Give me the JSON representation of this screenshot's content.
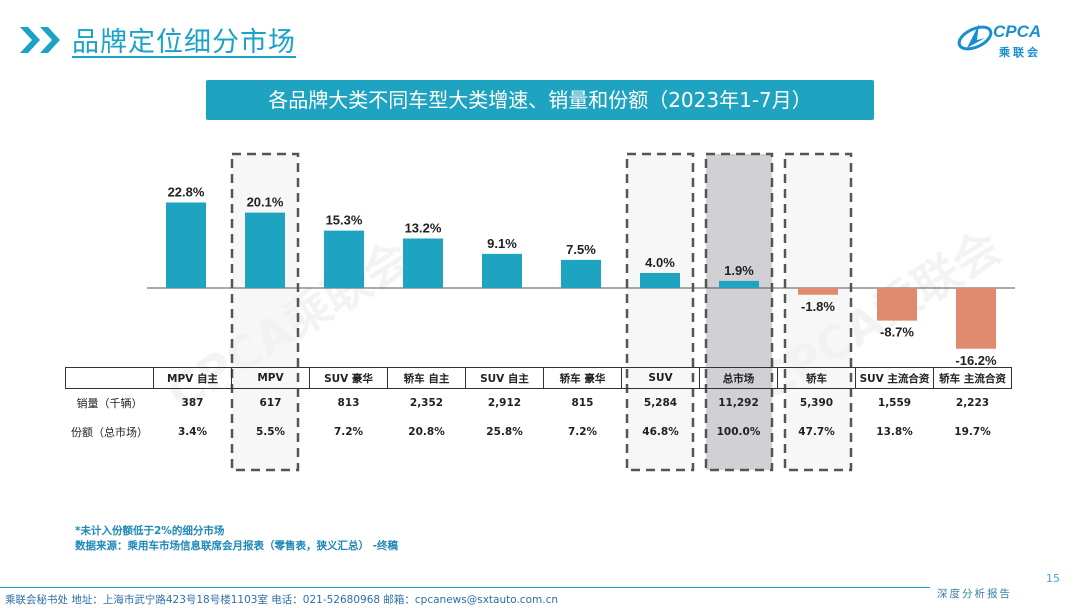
{
  "header": {
    "page_title": "品牌定位细分市场",
    "logo_text": "CPCA",
    "logo_cn": "乘联会"
  },
  "subtitle": "各品牌大类不同车型大类增速、销量和份额（2023年1-7月）",
  "watermark_text": "CPCA乘联会",
  "colors": {
    "positive": "#1ea3c0",
    "negative": "#e08a6e",
    "highlight_gray": "#c9c9ce",
    "accent": "#1aa3c6"
  },
  "chart_data": {
    "type": "bar",
    "title": "各品牌大类不同车型大类增速、销量和份额（2023年1-7月）",
    "categories": [
      "MPV 自主",
      "MPV",
      "SUV 豪华",
      "轿车 自主",
      "SUV 自主",
      "轿车 豪华",
      "SUV",
      "总市场",
      "轿车",
      "SUV 主流合资",
      "轿车 主流合资"
    ],
    "values": [
      22.8,
      20.1,
      15.3,
      13.2,
      9.1,
      7.5,
      4.0,
      1.9,
      -1.8,
      -8.7,
      -16.2
    ],
    "value_labels": [
      "22.8%",
      "20.1%",
      "15.3%",
      "13.2%",
      "9.1%",
      "7.5%",
      "4.0%",
      "1.9%",
      "-1.8%",
      "-8.7%",
      "-16.2%"
    ],
    "unit": "%",
    "ylim": [
      -20,
      25
    ],
    "highlighted": [
      "MPV",
      "SUV",
      "总市场",
      "轿车"
    ],
    "shaded": [
      "总市场"
    ]
  },
  "table": {
    "rows": [
      {
        "label": "销量（千辆）",
        "values": [
          "387",
          "617",
          "813",
          "2,352",
          "2,912",
          "815",
          "5,284",
          "11,292",
          "5,390",
          "1,559",
          "2,223"
        ]
      },
      {
        "label": "份额（总市场）",
        "values": [
          "3.4%",
          "5.5%",
          "7.2%",
          "20.8%",
          "25.8%",
          "7.2%",
          "46.8%",
          "100.0%",
          "47.7%",
          "13.8%",
          "19.7%"
        ]
      }
    ]
  },
  "notes": {
    "line1": "*未计入份额低于2%的细分市场",
    "line2": "数据来源：乘用车市场信息联席会月报表（零售表，狭义汇总） -终稿"
  },
  "page_number": "15",
  "report_label": "深度分析报告",
  "footer": "乘联会秘书处  地址：上海市武宁路423号18号楼1103室  电话：021-52680968  邮箱：cpcanews@sxtauto.com.cn"
}
